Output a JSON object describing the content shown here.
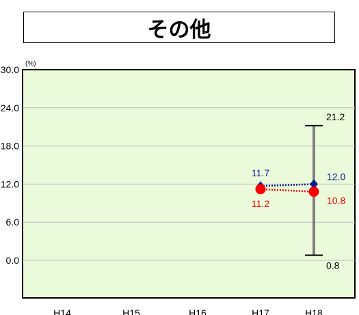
{
  "title": "その他",
  "chart_data": {
    "type": "line",
    "title": "その他",
    "unit_label": "(%)",
    "ylim": [
      0.0,
      30.0
    ],
    "y_ticks": [
      {
        "value": 30.0,
        "label": "30.0"
      },
      {
        "value": 24.0,
        "label": "24.0"
      },
      {
        "value": 18.0,
        "label": "18.0"
      },
      {
        "value": 12.0,
        "label": "12.0"
      },
      {
        "value": 6.0,
        "label": "6.0"
      },
      {
        "value": 0.0,
        "label": "0.0"
      }
    ],
    "categories": [
      "H14",
      "H15",
      "H16",
      "H17",
      "H18"
    ],
    "grid": true,
    "series": [
      {
        "color": "#0a1e8c",
        "marker": "diamond",
        "values": [
          null,
          null,
          null,
          11.7,
          12.0
        ],
        "labels": [
          null,
          null,
          null,
          "11.7",
          "12.0"
        ]
      },
      {
        "color": "#ff0000",
        "marker": "circle",
        "values": [
          null,
          null,
          null,
          11.2,
          10.8
        ],
        "labels": [
          null,
          null,
          null,
          "11.2",
          "10.8"
        ]
      }
    ],
    "error_range": {
      "category": "H18",
      "high": 21.2,
      "low": 0.8,
      "high_label": "21.2",
      "low_label": "0.8",
      "color": "#808080"
    },
    "colors": {
      "plot_background": "#eafadb",
      "grid": "#bdbdbd",
      "frame": "#000000"
    }
  }
}
